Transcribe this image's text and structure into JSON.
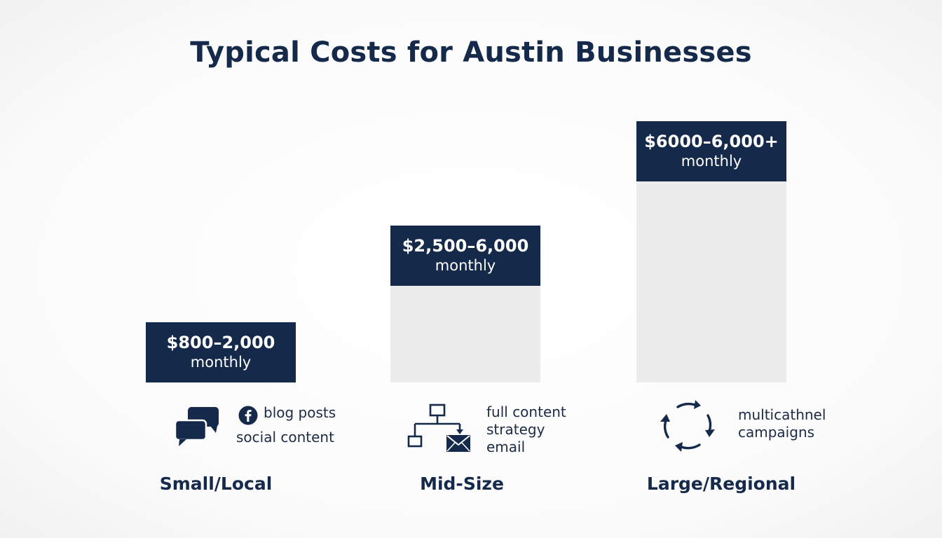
{
  "chart_data": {
    "type": "bar",
    "title": "Typical Costs for Austin Businesses",
    "categories": [
      "Small/Local",
      "Mid-Size",
      "Large/Regional"
    ],
    "values": [
      2000,
      6000,
      10000
    ],
    "price_labels": [
      "$800–2,000",
      "$2,500–6,000",
      "$6000–6,000+"
    ],
    "unit_label": "monthly",
    "features": [
      [
        "blog posts",
        "social content"
      ],
      [
        "full content",
        "strategy",
        "email"
      ],
      [
        "multicathnel",
        "campaigns"
      ]
    ],
    "ylim": [
      0,
      10000
    ],
    "grid": false
  },
  "icons": [
    "chat-bubbles-icon",
    "facebook-icon",
    "org-chart-icon",
    "mail-icon",
    "cycle-arrows-icon"
  ],
  "colors": {
    "navy": "#15294b",
    "bar_fill": "#ececec"
  }
}
